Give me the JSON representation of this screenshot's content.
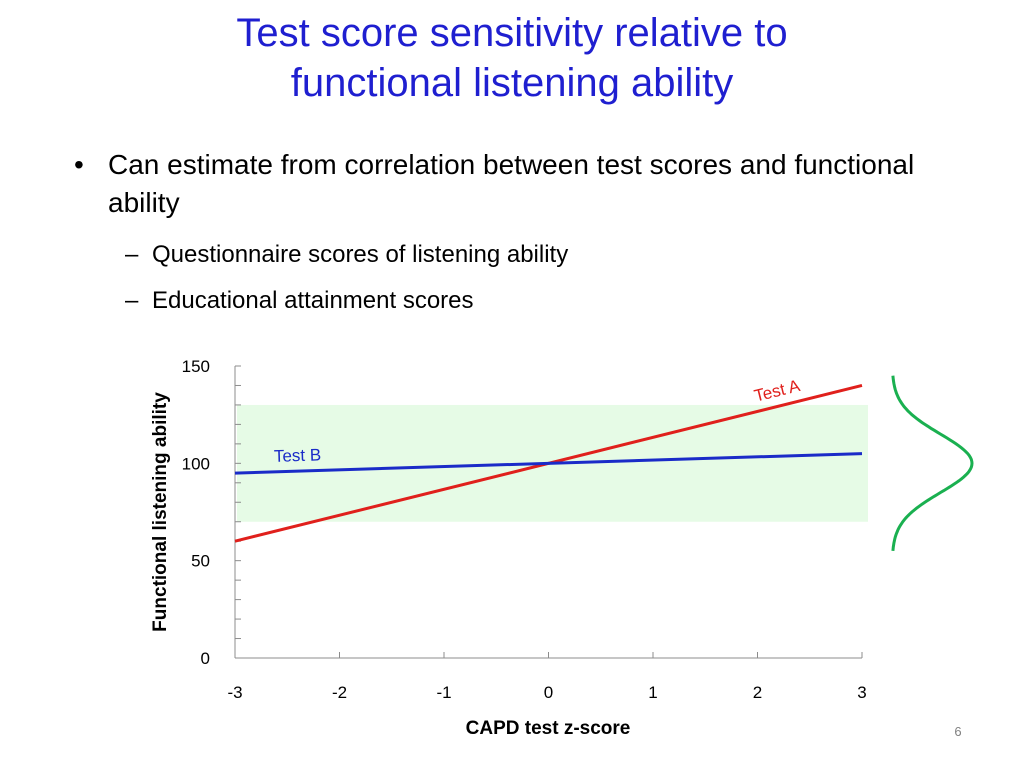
{
  "slide": {
    "title_line1": "Test score sensitivity relative to",
    "title_line2": "functional listening ability",
    "bullets": [
      {
        "text": "Can estimate from correlation between test scores and functional ability",
        "subitems": [
          "Questionnaire scores of listening ability",
          "Educational attainment scores"
        ]
      }
    ],
    "page_number": "6"
  },
  "colors": {
    "title": "#1f1fd0",
    "test_a": "#e0201c",
    "test_b": "#1a2bc8",
    "band": "#e6fbe6",
    "bell_curve": "#1ab050"
  },
  "chart_data": {
    "type": "line",
    "xlabel": "CAPD test z-score",
    "ylabel": "Functional listening ability",
    "xlim": [
      -3,
      3
    ],
    "ylim": [
      0,
      150
    ],
    "x_ticks": [
      -3,
      -2,
      -1,
      0,
      1,
      2,
      3
    ],
    "y_ticks": [
      0,
      50,
      100,
      150
    ],
    "series": [
      {
        "name": "Test A",
        "x": [
          -3,
          3
        ],
        "y": [
          60,
          140
        ]
      },
      {
        "name": "Test B",
        "x": [
          -3,
          3
        ],
        "y": [
          95,
          105
        ]
      }
    ],
    "shaded_band": {
      "y_from": 70,
      "y_to": 130
    },
    "distribution_curve": {
      "mean": 100,
      "sd": 15,
      "placement": "right of plot"
    },
    "grid": false
  }
}
